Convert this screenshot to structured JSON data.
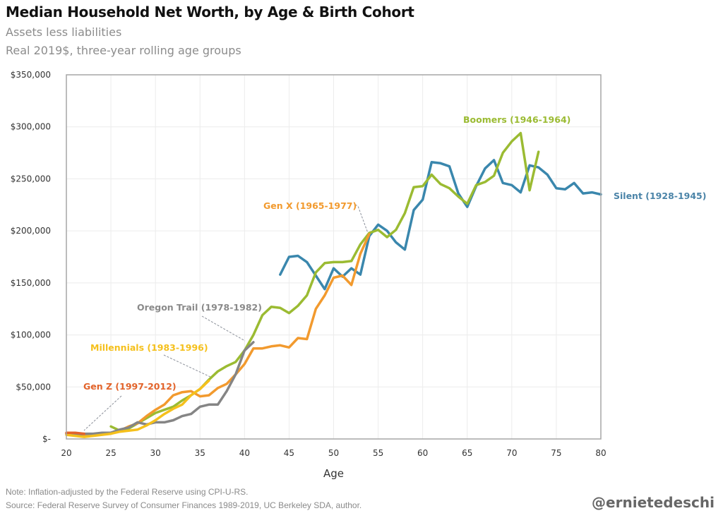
{
  "header": {
    "title": "Median Household Net Worth, by Age & Birth Cohort",
    "subtitle1": "Assets less liabilities",
    "subtitle2": "Real 2019$, three-year rolling age groups"
  },
  "footer": {
    "note": "Note: Inflation-adjusted by the Federal Reserve using CPI-U-RS.",
    "source": "Source: Federal Reserve Survey of Consumer Finances 1989-2019, UC Berkeley SDA, author.",
    "handle": "@ernietedeschi"
  },
  "chart_data": {
    "type": "line",
    "title": "Median Household Net Worth, by Age & Birth Cohort",
    "subtitle": "Assets less liabilities; Real 2019$, three-year rolling age groups",
    "xlabel": "Age",
    "ylabel": "",
    "xlim": [
      20,
      80
    ],
    "ylim": [
      0,
      350000
    ],
    "x_ticks": [
      20,
      25,
      30,
      35,
      40,
      45,
      50,
      55,
      60,
      65,
      70,
      75,
      80
    ],
    "x_tick_labels": [
      "20",
      "25",
      "30",
      "35",
      "40",
      "45",
      "50",
      "55",
      "60",
      "65",
      "70",
      "75",
      "80"
    ],
    "y_ticks": [
      0,
      50000,
      100000,
      150000,
      200000,
      250000,
      300000,
      350000
    ],
    "y_tick_labels": [
      "$-",
      "$50,000",
      "$100,000",
      "$150,000",
      "$200,000",
      "$250,000",
      "$300,000",
      "$350,000"
    ],
    "grid": true,
    "legend": "inline labels",
    "series": [
      {
        "name": "Silent (1928-1945)",
        "color": "#3a87ad",
        "x_start": 44,
        "values": [
          158000,
          175000,
          176000,
          170000,
          157000,
          144000,
          164000,
          156000,
          164000,
          158000,
          195000,
          206000,
          200000,
          189000,
          182000,
          220000,
          230000,
          266000,
          265000,
          262000,
          236000,
          223000,
          243000,
          260000,
          268000,
          246000,
          244000,
          237000,
          263000,
          261000,
          254000,
          241000,
          240000,
          246000,
          236000,
          237000,
          235000
        ]
      },
      {
        "name": "Boomers (1946-1964)",
        "color": "#9bbb32",
        "x_start": 25,
        "values": [
          12000,
          8000,
          10000,
          15000,
          20000,
          25000,
          28000,
          31000,
          37000,
          42000,
          48000,
          57000,
          65000,
          70000,
          74000,
          85000,
          100000,
          119000,
          127000,
          126000,
          121000,
          128000,
          138000,
          160000,
          169000,
          170000,
          170000,
          171000,
          187000,
          198000,
          201000,
          194000,
          201000,
          217000,
          242000,
          243000,
          254000,
          245000,
          241000,
          233000,
          226000,
          244000,
          247000,
          253000,
          275000,
          286000,
          294000,
          239000,
          276000
        ]
      },
      {
        "name": "Gen X (1965-1977)",
        "color": "#f29a2e",
        "x_start": 20,
        "values": [
          5000,
          4000,
          4000,
          4000,
          5000,
          6000,
          8000,
          12000,
          15000,
          22000,
          28000,
          33000,
          42000,
          45000,
          46000,
          41000,
          42000,
          49000,
          53000,
          62000,
          72000,
          87000,
          87000,
          89000,
          90000,
          88000,
          97000,
          96000,
          125000,
          138000,
          155000,
          157000,
          148000,
          178000,
          197000
        ]
      },
      {
        "name": "Oregon Trail (1978-1982)",
        "color": "#858585",
        "x_start": 20,
        "values": [
          5000,
          4000,
          5000,
          5000,
          6000,
          6000,
          9000,
          11000,
          16000,
          14000,
          16000,
          16000,
          18000,
          22000,
          24000,
          31000,
          33000,
          33000,
          46000,
          62000,
          85000,
          93000
        ]
      },
      {
        "name": "Millennials (1983-1996)",
        "color": "#f5c01c",
        "x_start": 20,
        "values": [
          4000,
          3000,
          2000,
          3000,
          4000,
          5000,
          7000,
          8000,
          9000,
          13000,
          18000,
          24000,
          29000,
          33000,
          42000,
          48000,
          56000
        ]
      },
      {
        "name": "Gen Z (1997-2012)",
        "color": "#e2632a",
        "x_start": 20,
        "values": [
          6000,
          6000,
          5000
        ]
      }
    ]
  }
}
